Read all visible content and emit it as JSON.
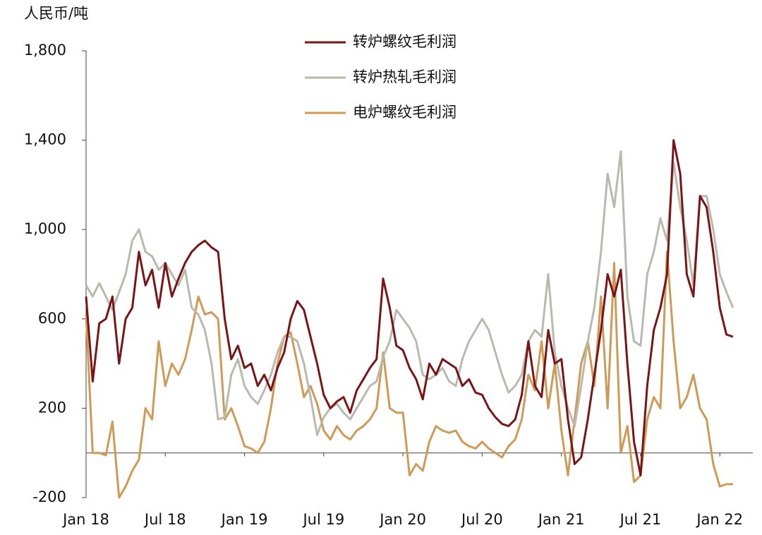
{
  "chart_data": {
    "type": "line",
    "y_axis_label": "人民币/吨",
    "x": [
      0,
      0.5,
      1,
      1.5,
      2,
      2.5,
      3,
      3.5,
      4,
      4.5,
      5,
      5.5,
      6,
      6.5,
      7,
      7.5,
      8,
      8.5,
      9,
      9.5,
      10,
      10.5,
      11,
      11.5,
      12,
      12.5,
      13,
      13.5,
      14,
      14.5,
      15,
      15.5,
      16,
      16.5,
      17,
      17.5,
      18,
      18.5,
      19,
      19.5,
      20,
      20.5,
      21,
      21.5,
      22,
      22.5,
      23,
      23.5,
      24,
      24.5,
      25,
      25.5,
      26,
      26.5,
      27,
      27.5,
      28,
      28.5,
      29,
      29.5,
      30,
      30.5,
      31,
      31.5,
      32,
      32.5,
      33,
      33.5,
      34,
      34.5,
      35,
      35.5,
      36,
      36.5,
      37,
      37.5,
      38,
      38.5,
      39,
      39.5,
      40,
      40.5,
      41,
      41.5,
      42,
      42.5,
      43,
      43.5,
      44,
      44.5,
      45,
      45.5,
      46,
      46.5,
      47,
      47.5,
      48,
      48.5,
      49
    ],
    "xlim": [
      0,
      50.5
    ],
    "xticks": [
      {
        "value": 0,
        "label": "Jan 18"
      },
      {
        "value": 6,
        "label": "Jul 18"
      },
      {
        "value": 12,
        "label": "Jan 19"
      },
      {
        "value": 18,
        "label": "Jul 19"
      },
      {
        "value": 24,
        "label": "Jan 20"
      },
      {
        "value": 30,
        "label": "Jul 20"
      },
      {
        "value": 36,
        "label": "Jan 21"
      },
      {
        "value": 42,
        "label": "Jul 21"
      },
      {
        "value": 48,
        "label": "Jan 22"
      }
    ],
    "ylim": [
      -200,
      1800
    ],
    "yticks": [
      {
        "value": -200,
        "label": "-200"
      },
      200,
      600,
      {
        "value": 1000,
        "label": "1,000"
      },
      {
        "value": 1400,
        "label": "1,400"
      },
      {
        "value": 1800,
        "label": "1,800"
      }
    ],
    "legend": "top",
    "series": [
      {
        "name": "转炉螺纹毛利润",
        "color": "#7b1416",
        "values": [
          700,
          320,
          580,
          600,
          700,
          400,
          600,
          650,
          900,
          750,
          820,
          650,
          850,
          700,
          780,
          850,
          900,
          930,
          950,
          920,
          900,
          600,
          420,
          480,
          380,
          400,
          300,
          350,
          280,
          380,
          450,
          600,
          680,
          640,
          520,
          400,
          260,
          200,
          230,
          250,
          180,
          280,
          330,
          380,
          420,
          780,
          650,
          480,
          460,
          380,
          330,
          240,
          400,
          350,
          420,
          400,
          380,
          300,
          330,
          270,
          260,
          200,
          160,
          130,
          120,
          150,
          260,
          500,
          300,
          250,
          550,
          400,
          420,
          150,
          -50,
          -20,
          150,
          350,
          550,
          800,
          700,
          820,
          400,
          50,
          -100,
          300,
          550,
          650,
          800,
          1400,
          1250,
          800,
          700,
          1150,
          1100,
          900,
          650,
          530,
          520
        ]
      },
      {
        "name": "转炉热轧毛利润",
        "color": "#b9b9ad",
        "values": [
          750,
          700,
          760,
          700,
          640,
          720,
          800,
          950,
          1000,
          900,
          880,
          820,
          850,
          800,
          750,
          820,
          650,
          620,
          550,
          400,
          150,
          160,
          350,
          420,
          300,
          250,
          220,
          280,
          350,
          450,
          520,
          520,
          500,
          400,
          250,
          80,
          160,
          200,
          220,
          180,
          150,
          200,
          250,
          300,
          320,
          430,
          500,
          640,
          600,
          560,
          500,
          350,
          330,
          350,
          380,
          320,
          300,
          420,
          500,
          550,
          600,
          550,
          450,
          350,
          270,
          300,
          350,
          500,
          550,
          520,
          800,
          450,
          300,
          200,
          120,
          300,
          500,
          650,
          900,
          1250,
          1100,
          1350,
          700,
          500,
          480,
          800,
          900,
          1050,
          950,
          1300,
          1100,
          950,
          750,
          1150,
          1150,
          1000,
          800,
          720,
          650
        ]
      },
      {
        "name": "电炉螺纹毛利润",
        "color": "#cf9a55",
        "values": [
          620,
          0,
          0,
          -10,
          140,
          -200,
          -150,
          -80,
          -30,
          200,
          150,
          500,
          300,
          400,
          350,
          420,
          550,
          700,
          620,
          630,
          600,
          150,
          200,
          120,
          30,
          20,
          0,
          50,
          200,
          400,
          520,
          540,
          400,
          250,
          300,
          220,
          100,
          60,
          120,
          80,
          60,
          100,
          120,
          150,
          200,
          450,
          200,
          180,
          180,
          -100,
          -50,
          -80,
          50,
          120,
          100,
          90,
          100,
          50,
          30,
          20,
          50,
          20,
          0,
          -20,
          30,
          60,
          150,
          350,
          280,
          500,
          200,
          400,
          100,
          -100,
          150,
          400,
          500,
          300,
          700,
          200,
          850,
          0,
          120,
          -130,
          -100,
          150,
          250,
          200,
          900,
          500,
          200,
          250,
          350,
          200,
          150,
          -50,
          -150,
          -140,
          -140
        ]
      }
    ]
  }
}
